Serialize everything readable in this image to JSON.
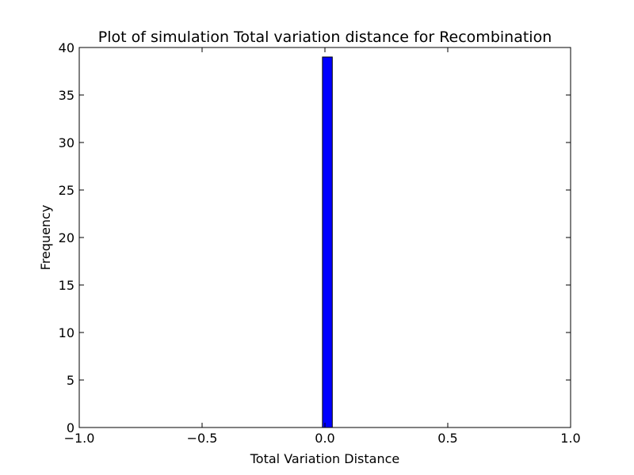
{
  "chart_data": {
    "type": "bar",
    "title": "Plot of simulation Total variation distance for Recombination",
    "xlabel": "Total Variation Distance",
    "ylabel": "Frequency",
    "xlim": [
      -1.0,
      1.0
    ],
    "ylim": [
      0,
      40
    ],
    "x_ticks": [
      "−1.0",
      "−0.5",
      "0.0",
      "0.5",
      "1.0"
    ],
    "x_tick_values": [
      -1.0,
      -0.5,
      0.0,
      0.5,
      1.0
    ],
    "y_ticks": [
      "0",
      "5",
      "10",
      "15",
      "20",
      "25",
      "30",
      "35",
      "40"
    ],
    "y_tick_values": [
      0,
      5,
      10,
      15,
      20,
      25,
      30,
      35,
      40
    ],
    "bars": [
      {
        "x_start": -0.01,
        "x_end": 0.03,
        "value": 39
      }
    ],
    "bar_color": "#0000ff",
    "edge_color": "#000000",
    "grid": false,
    "legend": "none"
  }
}
